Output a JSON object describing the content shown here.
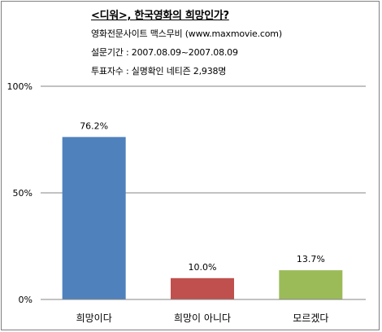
{
  "title": "<디워>, 한국영화의 희망인가?",
  "subtitles": [
    "영화전문사이트 맥스무비 (www.maxmovie.com)",
    "설문기간 : 2007.08.09~2007.08.09",
    "투표자수 : 실명확인 네티즌 2,938명"
  ],
  "chart_data": {
    "type": "bar",
    "title": "<디워>, 한국영화의 희망인가?",
    "categories": [
      "희망이다",
      "희망이 아니다",
      "모르겠다"
    ],
    "values": [
      76.2,
      10.0,
      13.7
    ],
    "value_labels": [
      "76.2%",
      "10.0%",
      "13.7%"
    ],
    "colors": [
      "#4f81bd",
      "#c0504d",
      "#9bbb59"
    ],
    "ylim": [
      0,
      100
    ],
    "yticks": [
      0,
      50,
      100
    ],
    "ytick_labels": [
      "0%",
      "50%",
      "100%"
    ],
    "grid": true,
    "unit": "%"
  }
}
